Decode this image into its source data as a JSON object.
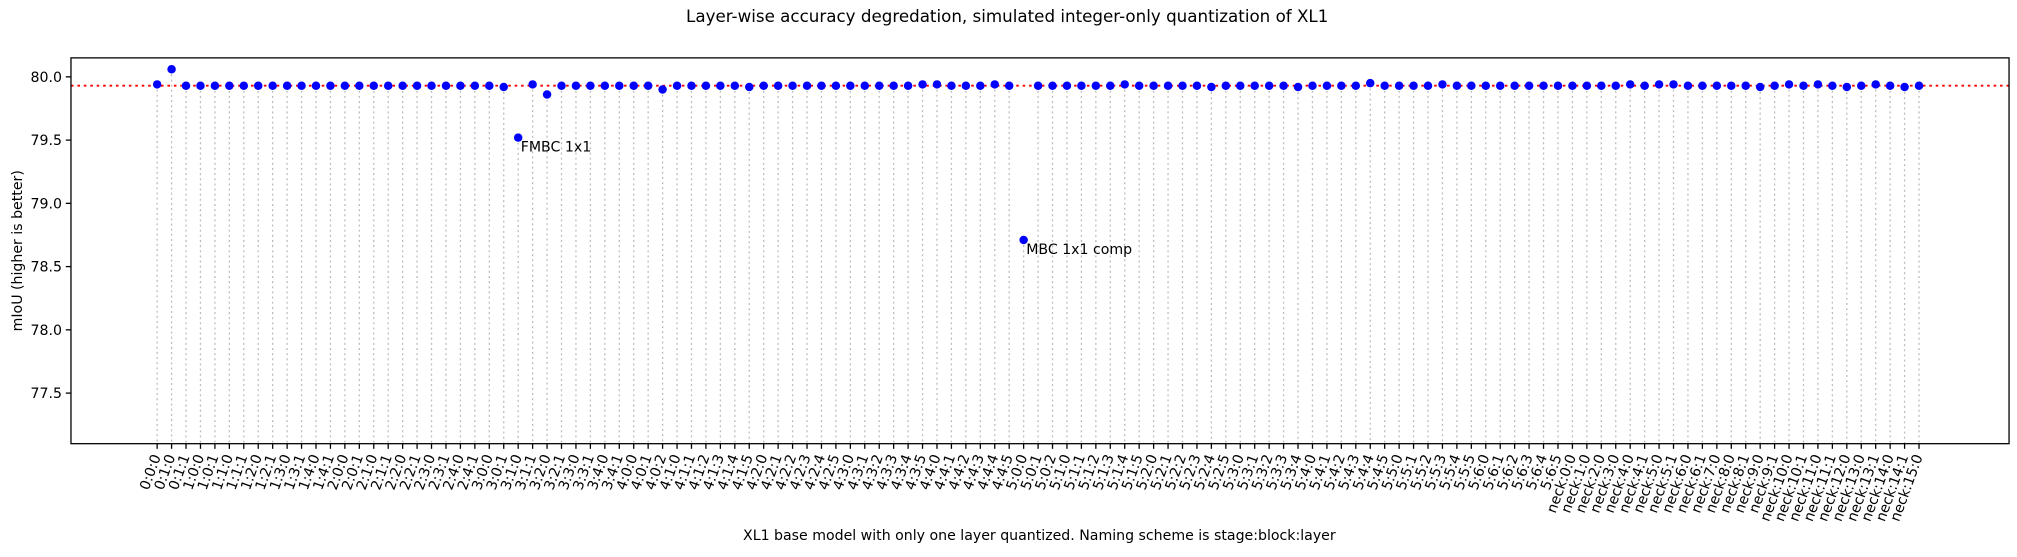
{
  "chart_data": {
    "type": "scatter",
    "title": "Layer-wise accuracy degredation, simulated integer-only quantization of XL1",
    "xlabel": "XL1 base model with only one layer quantized. Naming scheme is stage:block:layer",
    "ylabel": "mIoU (higher is better)",
    "categories": [
      "0:0:0",
      "0:1:0",
      "0:1:1",
      "1:0:0",
      "1:0:1",
      "1:1:0",
      "1:1:1",
      "1:2:0",
      "1:2:1",
      "1:3:0",
      "1:3:1",
      "1:4:0",
      "1:4:1",
      "2:0:0",
      "2:0:1",
      "2:1:0",
      "2:1:1",
      "2:2:0",
      "2:2:1",
      "2:3:0",
      "2:3:1",
      "2:4:0",
      "2:4:1",
      "3:0:0",
      "3:0:1",
      "3:1:0",
      "3:1:1",
      "3:2:0",
      "3:2:1",
      "3:3:0",
      "3:3:1",
      "3:4:0",
      "3:4:1",
      "4:0:0",
      "4:0:1",
      "4:0:2",
      "4:1:0",
      "4:1:1",
      "4:1:2",
      "4:1:3",
      "4:1:4",
      "4:1:5",
      "4:2:0",
      "4:2:1",
      "4:2:2",
      "4:2:3",
      "4:2:4",
      "4:2:5",
      "4:3:0",
      "4:3:1",
      "4:3:2",
      "4:3:3",
      "4:3:4",
      "4:3:5",
      "4:4:0",
      "4:4:1",
      "4:4:2",
      "4:4:3",
      "4:4:4",
      "4:4:5",
      "5:0:0",
      "5:0:1",
      "5:0:2",
      "5:1:0",
      "5:1:1",
      "5:1:2",
      "5:1:3",
      "5:1:4",
      "5:1:5",
      "5:2:0",
      "5:2:1",
      "5:2:2",
      "5:2:3",
      "5:2:4",
      "5:2:5",
      "5:3:0",
      "5:3:1",
      "5:3:2",
      "5:3:3",
      "5:3:4",
      "5:4:0",
      "5:4:1",
      "5:4:2",
      "5:4:3",
      "5:4:4",
      "5:4:5",
      "5:5:0",
      "5:5:1",
      "5:5:2",
      "5:5:3",
      "5:5:4",
      "5:5:5",
      "5:6:0",
      "5:6:1",
      "5:6:2",
      "5:6:3",
      "5:6:4",
      "5:6:5",
      "neck:0:0",
      "neck:1:0",
      "neck:2:0",
      "neck:3:0",
      "neck:4:0",
      "neck:4:1",
      "neck:5:0",
      "neck:5:1",
      "neck:6:0",
      "neck:6:1",
      "neck:7:0",
      "neck:8:0",
      "neck:8:1",
      "neck:9:0",
      "neck:9:1",
      "neck:10:0",
      "neck:10:1",
      "neck:11:0",
      "neck:11:1",
      "neck:12:0",
      "neck:13:0",
      "neck:13:1",
      "neck:14:0",
      "neck:14:1",
      "neck:15:0"
    ],
    "values": [
      79.94,
      80.06,
      79.93,
      79.93,
      79.93,
      79.93,
      79.93,
      79.93,
      79.93,
      79.93,
      79.93,
      79.93,
      79.93,
      79.93,
      79.93,
      79.93,
      79.93,
      79.93,
      79.93,
      79.93,
      79.93,
      79.93,
      79.93,
      79.93,
      79.92,
      79.52,
      79.94,
      79.86,
      79.93,
      79.93,
      79.93,
      79.93,
      79.93,
      79.93,
      79.93,
      79.9,
      79.93,
      79.93,
      79.93,
      79.93,
      79.93,
      79.92,
      79.93,
      79.93,
      79.93,
      79.93,
      79.93,
      79.93,
      79.93,
      79.93,
      79.93,
      79.93,
      79.93,
      79.94,
      79.94,
      79.93,
      79.93,
      79.93,
      79.94,
      79.93,
      78.71,
      79.93,
      79.93,
      79.93,
      79.93,
      79.93,
      79.93,
      79.94,
      79.93,
      79.93,
      79.93,
      79.93,
      79.93,
      79.92,
      79.93,
      79.93,
      79.93,
      79.93,
      79.93,
      79.92,
      79.93,
      79.93,
      79.93,
      79.93,
      79.95,
      79.93,
      79.93,
      79.93,
      79.93,
      79.94,
      79.93,
      79.93,
      79.93,
      79.93,
      79.93,
      79.93,
      79.93,
      79.93,
      79.93,
      79.93,
      79.93,
      79.93,
      79.94,
      79.93,
      79.94,
      79.94,
      79.93,
      79.93,
      79.93,
      79.93,
      79.93,
      79.92,
      79.93,
      79.94,
      79.93,
      79.94,
      79.93,
      79.92,
      79.93,
      79.94,
      79.93,
      79.92,
      79.93
    ],
    "color": "#0000ff",
    "baseline": 79.93,
    "baseline_color": "#ff0000",
    "ylim": [
      77.1,
      80.15
    ],
    "yticks": [
      77.5,
      {
        "value": 78.0,
        "label": "78.0"
      },
      78.5,
      {
        "value": 79.0,
        "label": "79.0"
      },
      79.5,
      {
        "value": 80.0,
        "label": "80.0"
      }
    ],
    "grid": true,
    "annotations": [
      {
        "text": "FMBC 1x1",
        "x": "3:1:0",
        "y": 79.52
      },
      {
        "text": "MBC 1x1 comp",
        "x": "5:0:0",
        "y": 78.71
      }
    ]
  }
}
